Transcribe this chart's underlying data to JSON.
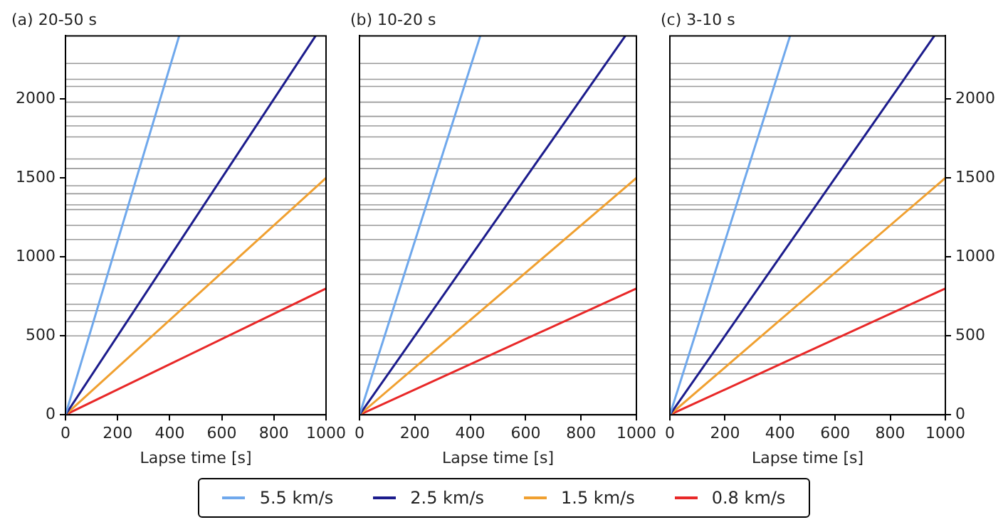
{
  "chart_data": [
    {
      "type": "line",
      "title": "(a) 20-50 s",
      "xlabel": "Lapse time [s]",
      "xlim": [
        0,
        1000
      ],
      "xticks": [
        0,
        200,
        400,
        600,
        800,
        1000
      ],
      "ylim": [
        0,
        2400
      ],
      "yticks": [
        0,
        500,
        1000,
        1500,
        2000
      ],
      "grid": false,
      "legend": "bottom",
      "marker": "none",
      "line_style": "solid",
      "series": [
        {
          "name": "5.5 km/s",
          "color": "#6fa8ec",
          "x": [
            0,
            436.4
          ],
          "values": [
            0,
            2400
          ]
        },
        {
          "name": "2.5 km/s",
          "color": "#1c1c8c",
          "x": [
            0,
            960
          ],
          "values": [
            0,
            2400
          ]
        },
        {
          "name": "1.5 km/s",
          "color": "#f0a030",
          "x": [
            0,
            1000
          ],
          "values": [
            0,
            1500
          ]
        },
        {
          "name": "0.8 km/s",
          "color": "#e82828",
          "x": [
            0,
            1000
          ],
          "values": [
            0,
            800
          ]
        }
      ],
      "ref_lines": [
        {
          "axis": "y",
          "value": 2225,
          "color": "#999999"
        },
        {
          "axis": "y",
          "value": 2125,
          "color": "#999999"
        },
        {
          "axis": "y",
          "value": 2080,
          "color": "#999999"
        },
        {
          "axis": "y",
          "value": 1980,
          "color": "#999999"
        },
        {
          "axis": "y",
          "value": 1890,
          "color": "#999999"
        },
        {
          "axis": "y",
          "value": 1830,
          "color": "#999999"
        },
        {
          "axis": "y",
          "value": 1760,
          "color": "#999999"
        },
        {
          "axis": "y",
          "value": 1620,
          "color": "#999999"
        },
        {
          "axis": "y",
          "value": 1560,
          "color": "#999999"
        },
        {
          "axis": "y",
          "value": 1450,
          "color": "#999999"
        },
        {
          "axis": "y",
          "value": 1400,
          "color": "#999999"
        },
        {
          "axis": "y",
          "value": 1330,
          "color": "#999999"
        },
        {
          "axis": "y",
          "value": 1300,
          "color": "#999999"
        },
        {
          "axis": "y",
          "value": 1200,
          "color": "#999999"
        },
        {
          "axis": "y",
          "value": 1110,
          "color": "#999999"
        },
        {
          "axis": "y",
          "value": 980,
          "color": "#999999"
        },
        {
          "axis": "y",
          "value": 890,
          "color": "#999999"
        },
        {
          "axis": "y",
          "value": 830,
          "color": "#999999"
        },
        {
          "axis": "y",
          "value": 700,
          "color": "#999999"
        },
        {
          "axis": "y",
          "value": 660,
          "color": "#999999"
        },
        {
          "axis": "y",
          "value": 590,
          "color": "#999999"
        },
        {
          "axis": "y",
          "value": 500,
          "color": "#999999"
        }
      ]
    },
    {
      "type": "line",
      "title": "(b) 10-20 s",
      "xlabel": "Lapse time [s]",
      "xlim": [
        0,
        1000
      ],
      "xticks": [
        0,
        200,
        400,
        600,
        800,
        1000
      ],
      "ylim": [
        0,
        2400
      ],
      "grid": false,
      "tick_labels": "x",
      "marker": "none",
      "line_style": "solid",
      "series": [
        {
          "color": "#6fa8ec",
          "x": [
            0,
            436.4
          ],
          "values": [
            0,
            2400
          ]
        },
        {
          "color": "#1c1c8c",
          "x": [
            0,
            960
          ],
          "values": [
            0,
            2400
          ]
        },
        {
          "color": "#f0a030",
          "x": [
            0,
            1000
          ],
          "values": [
            0,
            1500
          ]
        },
        {
          "color": "#e82828",
          "x": [
            0,
            1000
          ],
          "values": [
            0,
            800
          ]
        }
      ],
      "ref_lines": [
        {
          "axis": "y",
          "value": 2225,
          "color": "#999999"
        },
        {
          "axis": "y",
          "value": 2125,
          "color": "#999999"
        },
        {
          "axis": "y",
          "value": 2080,
          "color": "#999999"
        },
        {
          "axis": "y",
          "value": 1980,
          "color": "#999999"
        },
        {
          "axis": "y",
          "value": 1890,
          "color": "#999999"
        },
        {
          "axis": "y",
          "value": 1830,
          "color": "#999999"
        },
        {
          "axis": "y",
          "value": 1760,
          "color": "#999999"
        },
        {
          "axis": "y",
          "value": 1620,
          "color": "#999999"
        },
        {
          "axis": "y",
          "value": 1560,
          "color": "#999999"
        },
        {
          "axis": "y",
          "value": 1450,
          "color": "#999999"
        },
        {
          "axis": "y",
          "value": 1400,
          "color": "#999999"
        },
        {
          "axis": "y",
          "value": 1330,
          "color": "#999999"
        },
        {
          "axis": "y",
          "value": 1300,
          "color": "#999999"
        },
        {
          "axis": "y",
          "value": 1200,
          "color": "#999999"
        },
        {
          "axis": "y",
          "value": 1110,
          "color": "#999999"
        },
        {
          "axis": "y",
          "value": 980,
          "color": "#999999"
        },
        {
          "axis": "y",
          "value": 890,
          "color": "#999999"
        },
        {
          "axis": "y",
          "value": 830,
          "color": "#999999"
        },
        {
          "axis": "y",
          "value": 700,
          "color": "#999999"
        },
        {
          "axis": "y",
          "value": 660,
          "color": "#999999"
        },
        {
          "axis": "y",
          "value": 590,
          "color": "#999999"
        },
        {
          "axis": "y",
          "value": 500,
          "color": "#999999"
        },
        {
          "axis": "y",
          "value": 380,
          "color": "#999999"
        },
        {
          "axis": "y",
          "value": 320,
          "color": "#999999"
        },
        {
          "axis": "y",
          "value": 260,
          "color": "#999999"
        }
      ]
    },
    {
      "type": "line",
      "title": "(c) 3-10 s",
      "xlabel": "Lapse time [s]",
      "xlim": [
        0,
        1000
      ],
      "xticks": [
        0,
        200,
        400,
        600,
        800,
        1000
      ],
      "y2lim": [
        0,
        2400
      ],
      "y2ticks": [
        0,
        500,
        1000,
        1500,
        2000
      ],
      "grid": false,
      "marker": "none",
      "line_style": "solid",
      "series": [
        {
          "color": "#6fa8ec",
          "axis": "y2",
          "x": [
            0,
            436.4
          ],
          "values": [
            0,
            2400
          ]
        },
        {
          "color": "#1c1c8c",
          "axis": "y2",
          "x": [
            0,
            960
          ],
          "values": [
            0,
            2400
          ]
        },
        {
          "color": "#f0a030",
          "axis": "y2",
          "x": [
            0,
            1000
          ],
          "values": [
            0,
            1500
          ]
        },
        {
          "color": "#e82828",
          "axis": "y2",
          "x": [
            0,
            1000
          ],
          "values": [
            0,
            800
          ]
        }
      ],
      "ref_lines": [
        {
          "axis": "y2",
          "value": 2225,
          "color": "#999999"
        },
        {
          "axis": "y2",
          "value": 2125,
          "color": "#999999"
        },
        {
          "axis": "y2",
          "value": 2080,
          "color": "#999999"
        },
        {
          "axis": "y2",
          "value": 1980,
          "color": "#999999"
        },
        {
          "axis": "y2",
          "value": 1890,
          "color": "#999999"
        },
        {
          "axis": "y2",
          "value": 1830,
          "color": "#999999"
        },
        {
          "axis": "y2",
          "value": 1760,
          "color": "#999999"
        },
        {
          "axis": "y2",
          "value": 1620,
          "color": "#999999"
        },
        {
          "axis": "y2",
          "value": 1560,
          "color": "#999999"
        },
        {
          "axis": "y2",
          "value": 1450,
          "color": "#999999"
        },
        {
          "axis": "y2",
          "value": 1400,
          "color": "#999999"
        },
        {
          "axis": "y2",
          "value": 1330,
          "color": "#999999"
        },
        {
          "axis": "y2",
          "value": 1300,
          "color": "#999999"
        },
        {
          "axis": "y2",
          "value": 1200,
          "color": "#999999"
        },
        {
          "axis": "y2",
          "value": 1110,
          "color": "#999999"
        },
        {
          "axis": "y2",
          "value": 980,
          "color": "#999999"
        },
        {
          "axis": "y2",
          "value": 890,
          "color": "#999999"
        },
        {
          "axis": "y2",
          "value": 830,
          "color": "#999999"
        },
        {
          "axis": "y2",
          "value": 700,
          "color": "#999999"
        },
        {
          "axis": "y2",
          "value": 660,
          "color": "#999999"
        },
        {
          "axis": "y2",
          "value": 590,
          "color": "#999999"
        },
        {
          "axis": "y2",
          "value": 500,
          "color": "#999999"
        },
        {
          "axis": "y2",
          "value": 380,
          "color": "#999999"
        },
        {
          "axis": "y2",
          "value": 320,
          "color": "#999999"
        },
        {
          "axis": "y2",
          "value": 260,
          "color": "#999999"
        }
      ]
    }
  ]
}
